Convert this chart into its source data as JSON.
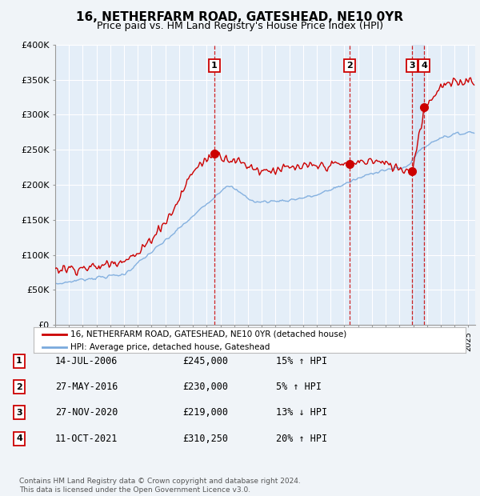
{
  "title": "16, NETHERFARM ROAD, GATESHEAD, NE10 0YR",
  "subtitle": "Price paid vs. HM Land Registry's House Price Index (HPI)",
  "ylim": [
    0,
    400000
  ],
  "yticks": [
    0,
    50000,
    100000,
    150000,
    200000,
    250000,
    300000,
    350000,
    400000
  ],
  "ytick_labels": [
    "£0",
    "£50K",
    "£100K",
    "£150K",
    "£200K",
    "£250K",
    "£300K",
    "£350K",
    "£400K"
  ],
  "background_color": "#f0f4f8",
  "plot_bg_color": "#e4eef8",
  "grid_color": "#ffffff",
  "line1_color": "#cc0000",
  "line2_color": "#7aaadd",
  "marker_color": "#cc0000",
  "dashed_color": "#cc0000",
  "legend1": "16, NETHERFARM ROAD, GATESHEAD, NE10 0YR (detached house)",
  "legend2": "HPI: Average price, detached house, Gateshead",
  "table_rows": [
    {
      "num": "1",
      "date": "14-JUL-2006",
      "price": "£245,000",
      "change": "15% ↑ HPI"
    },
    {
      "num": "2",
      "date": "27-MAY-2016",
      "price": "£230,000",
      "change": "5% ↑ HPI"
    },
    {
      "num": "3",
      "date": "27-NOV-2020",
      "price": "£219,000",
      "change": "13% ↓ HPI"
    },
    {
      "num": "4",
      "date": "11-OCT-2021",
      "price": "£310,250",
      "change": "20% ↑ HPI"
    }
  ],
  "footer": "Contains HM Land Registry data © Crown copyright and database right 2024.\nThis data is licensed under the Open Government Licence v3.0.",
  "sale_date_nums": [
    2006.542,
    2016.4,
    2020.917,
    2021.792
  ],
  "sale_prices": [
    245000,
    230000,
    219000,
    310250
  ],
  "start_year": 1995,
  "end_year": 2025
}
